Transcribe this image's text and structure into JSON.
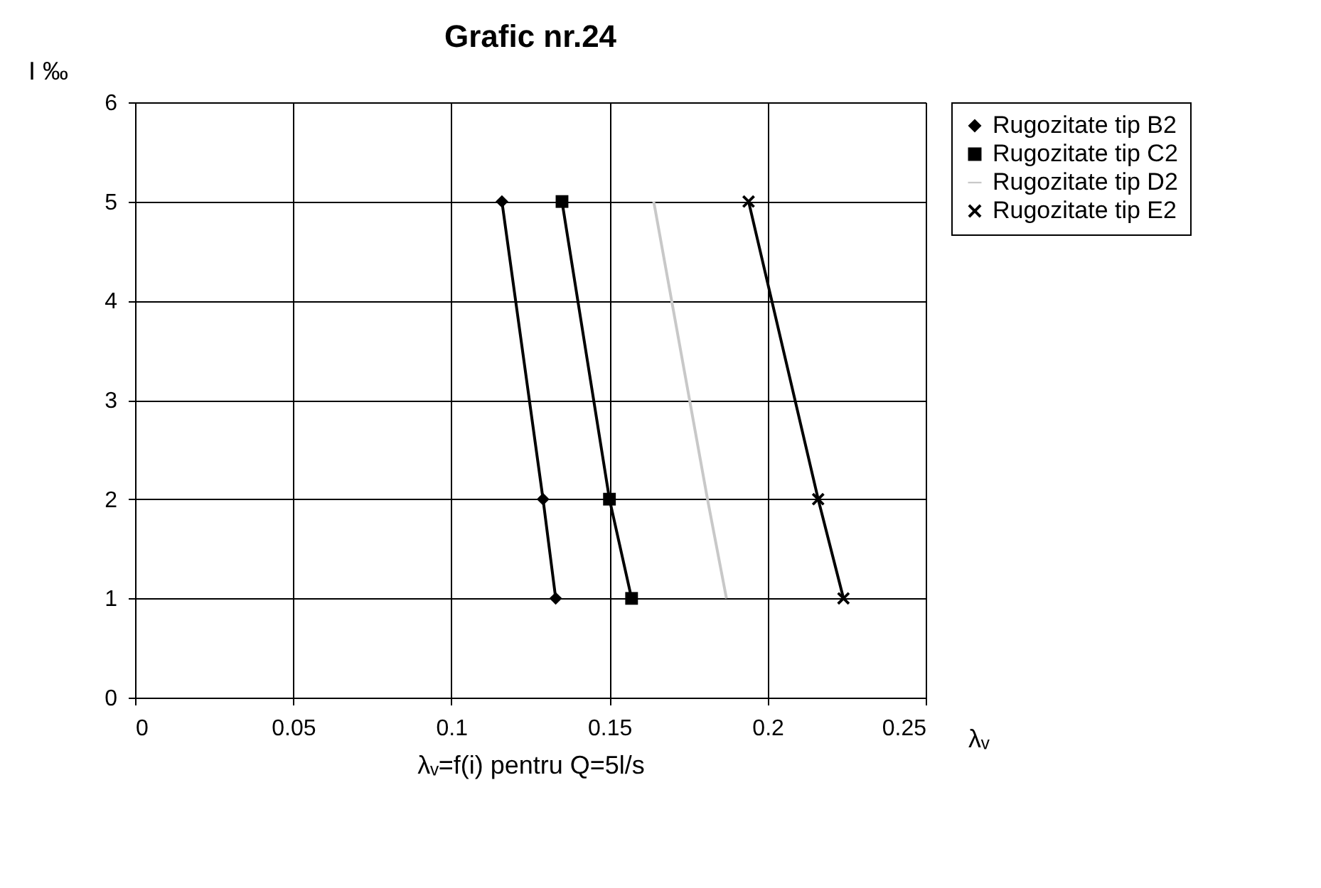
{
  "chart_data": {
    "type": "line",
    "title": "Grafic nr.24",
    "xlabel": "λᵥ",
    "ylabel": "I ‰",
    "annotations": [
      "λᵥ=f(i)  pentru Q=5l/s"
    ],
    "xlim": [
      0,
      0.25
    ],
    "xticks": [
      0,
      0.05,
      0.1,
      0.15,
      0.2,
      0.25
    ],
    "ylim": [
      0,
      6
    ],
    "yticks": [
      0,
      1,
      2,
      3,
      4,
      5,
      6
    ],
    "grid": true,
    "legend": "right",
    "line_style": "solid",
    "series": [
      {
        "name": "Rugozitate tip B2",
        "color": "#000000",
        "marker": "diamond",
        "x": [
          0.116,
          0.129,
          0.133
        ],
        "values": [
          5,
          2,
          1
        ]
      },
      {
        "name": "Rugozitate tip C2",
        "color": "#000000",
        "marker": "square",
        "x": [
          0.135,
          0.15,
          0.157
        ],
        "values": [
          5,
          2,
          1
        ]
      },
      {
        "name": "Rugozitate tip D2",
        "color": "#c8c8c8",
        "marker": "none",
        "x": [
          0.164,
          0.181,
          0.187
        ],
        "values": [
          5,
          2,
          1
        ]
      },
      {
        "name": "Rugozitate tip E2",
        "color": "#000000",
        "marker": "cross",
        "x": [
          0.194,
          0.216,
          0.224
        ],
        "values": [
          5,
          2,
          1
        ]
      }
    ]
  }
}
